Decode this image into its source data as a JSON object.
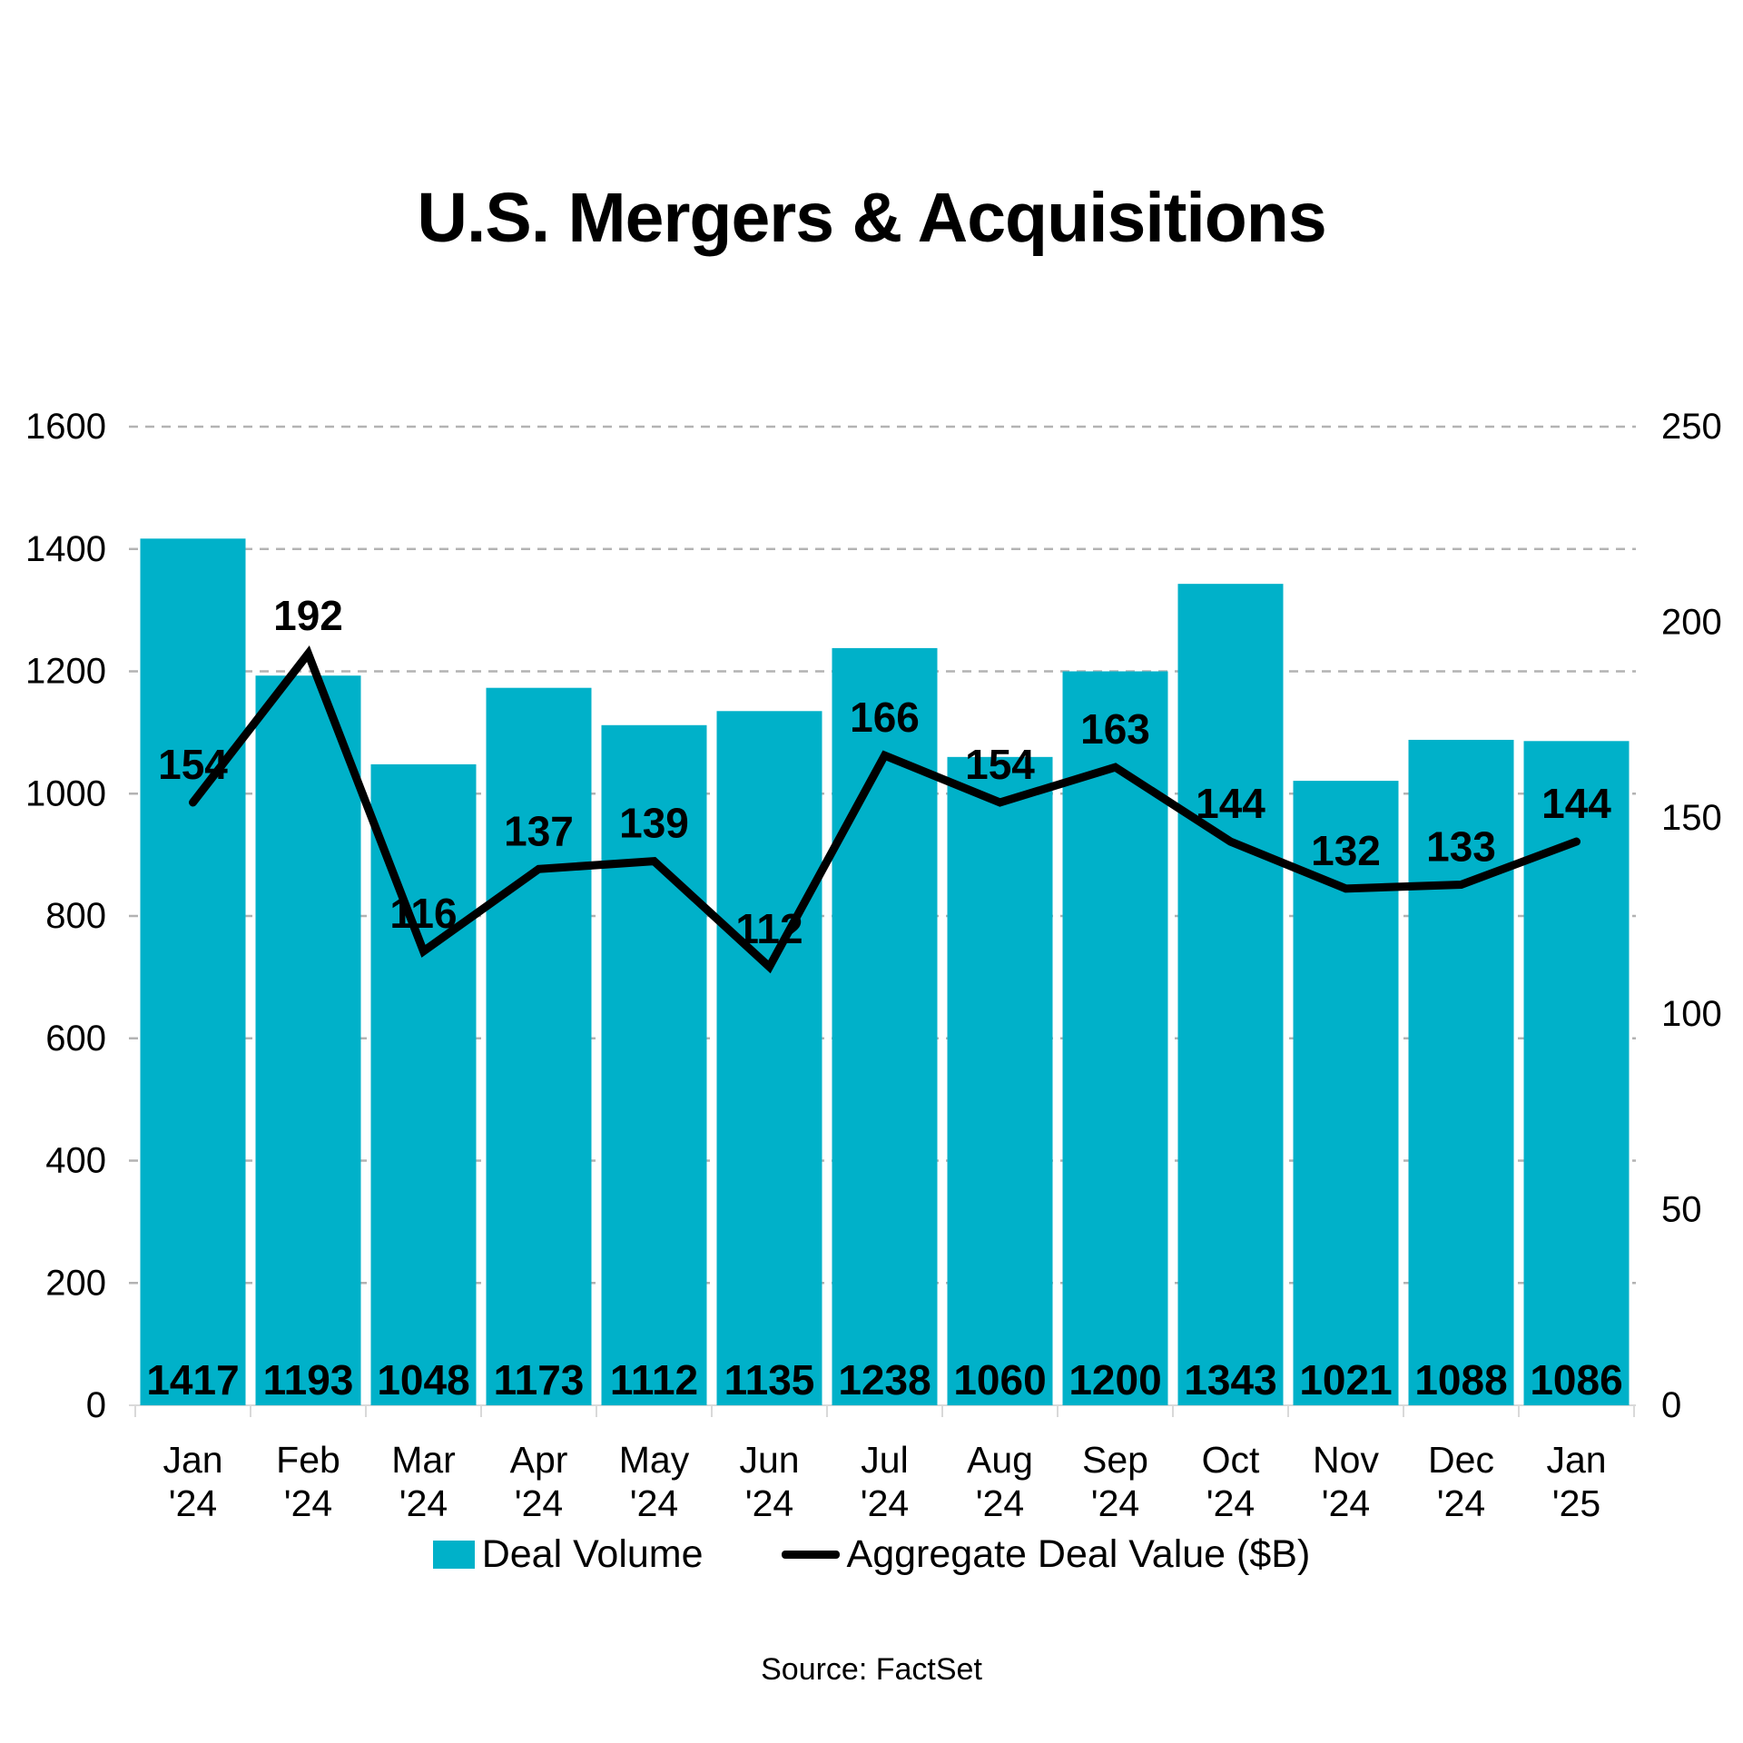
{
  "chart_data": {
    "type": "bar+line",
    "title": "U.S. Mergers & Acquisitions",
    "source": "Source: FactSet",
    "categories": [
      {
        "label": "Jan '24",
        "line1": "Jan",
        "line2": "'24"
      },
      {
        "label": "Feb '24",
        "line1": "Feb",
        "line2": "'24"
      },
      {
        "label": "Mar '24",
        "line1": "Mar",
        "line2": "'24"
      },
      {
        "label": "Apr '24",
        "line1": "Apr",
        "line2": "'24"
      },
      {
        "label": "May '24",
        "line1": "May",
        "line2": "'24"
      },
      {
        "label": "Jun '24",
        "line1": "Jun",
        "line2": "'24"
      },
      {
        "label": "Jul '24",
        "line1": "Jul",
        "line2": "'24"
      },
      {
        "label": "Aug '24",
        "line1": "Aug",
        "line2": "'24"
      },
      {
        "label": "Sep '24",
        "line1": "Sep",
        "line2": "'24"
      },
      {
        "label": "Oct '24",
        "line1": "Oct",
        "line2": "'24"
      },
      {
        "label": "Nov '24",
        "line1": "Nov",
        "line2": "'24"
      },
      {
        "label": "Dec '24",
        "line1": "Dec",
        "line2": "'24"
      },
      {
        "label": "Jan '25",
        "line1": "Jan",
        "line2": "'25"
      }
    ],
    "series": [
      {
        "name": "Deal Volume",
        "type": "bar",
        "axis": "left",
        "color": "#00b1c9",
        "values": [
          1417,
          1193,
          1048,
          1173,
          1112,
          1135,
          1238,
          1060,
          1200,
          1343,
          1021,
          1088,
          1086
        ]
      },
      {
        "name": "Aggregate Deal Value ($B)",
        "type": "line",
        "axis": "right",
        "color": "#000000",
        "values": [
          154,
          192,
          116,
          137,
          139,
          112,
          166,
          154,
          163,
          144,
          132,
          133,
          144
        ]
      }
    ],
    "left_axis": {
      "min": 0,
      "max": 1600,
      "step": 200,
      "ticks": [
        1600,
        1400,
        1200,
        1000,
        800,
        600,
        400,
        200,
        0
      ]
    },
    "right_axis": {
      "min": 0,
      "max": 250,
      "step": 50,
      "ticks": [
        250,
        200,
        150,
        100,
        50,
        0
      ]
    },
    "grid": "horizontal-dashed",
    "legend_position": "bottom",
    "colors": {
      "bar": "#00b1c9",
      "line": "#000000",
      "gridline": "#b3b3b3",
      "baseline": "#d9d9d9",
      "text": "#000000"
    }
  }
}
